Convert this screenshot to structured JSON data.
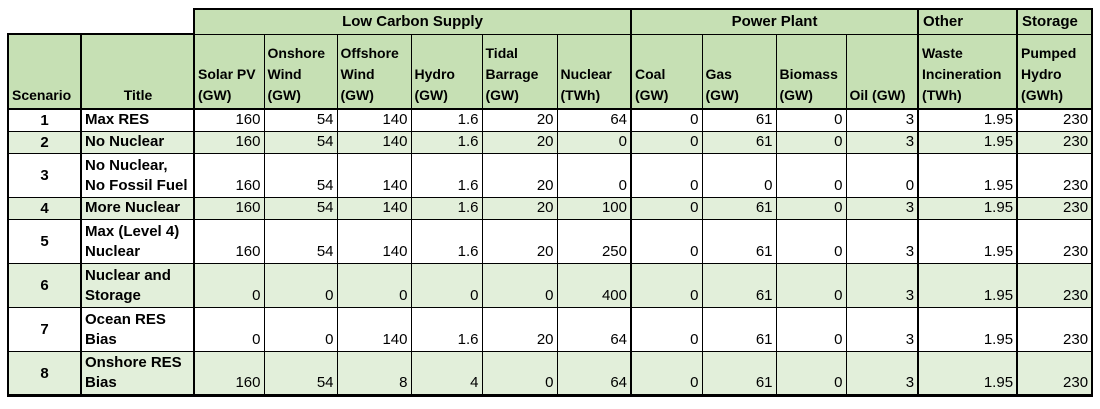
{
  "colors": {
    "header_fill": "#c6e0b4",
    "row_alt_fill": "#e2efda",
    "row_fill": "#ffffff",
    "border": "#000000"
  },
  "table": {
    "group_headers": [
      {
        "label": "Low Carbon Supply",
        "span": 6
      },
      {
        "label": "Power Plant",
        "span": 4
      },
      {
        "label": "Other",
        "span": 1
      },
      {
        "label": "Storage",
        "span": 1
      }
    ],
    "column_headers": [
      "Scenario",
      "Title",
      "Solar PV\n(GW)",
      "Onshore\nWind\n(GW)",
      "Offshore\nWind\n(GW)",
      "Hydro\n(GW)",
      "Tidal\nBarrage\n(GW)",
      "Nuclear\n(TWh)",
      "Coal\n(GW)",
      "Gas\n(GW)",
      "Biomass\n(GW)",
      "Oil (GW)",
      "Waste\nIncineration\n(TWh)",
      "Pumped\nHydro\n(GWh)"
    ],
    "rows": [
      {
        "scenario": "1",
        "title": "Max RES",
        "shaded": false,
        "values": [
          "160",
          "54",
          "140",
          "1.6",
          "20",
          "64",
          "0",
          "61",
          "0",
          "3",
          "1.95",
          "230"
        ]
      },
      {
        "scenario": "2",
        "title": "No Nuclear",
        "shaded": true,
        "values": [
          "160",
          "54",
          "140",
          "1.6",
          "20",
          "0",
          "0",
          "61",
          "0",
          "3",
          "1.95",
          "230"
        ]
      },
      {
        "scenario": "3",
        "title": "No Nuclear,\nNo Fossil Fuel",
        "shaded": false,
        "values": [
          "160",
          "54",
          "140",
          "1.6",
          "20",
          "0",
          "0",
          "0",
          "0",
          "0",
          "1.95",
          "230"
        ]
      },
      {
        "scenario": "4",
        "title": "More Nuclear",
        "shaded": true,
        "values": [
          "160",
          "54",
          "140",
          "1.6",
          "20",
          "100",
          "0",
          "61",
          "0",
          "3",
          "1.95",
          "230"
        ]
      },
      {
        "scenario": "5",
        "title": "Max (Level 4)\nNuclear",
        "shaded": false,
        "values": [
          "160",
          "54",
          "140",
          "1.6",
          "20",
          "250",
          "0",
          "61",
          "0",
          "3",
          "1.95",
          "230"
        ]
      },
      {
        "scenario": "6",
        "title": "Nuclear and\nStorage",
        "shaded": true,
        "values": [
          "0",
          "0",
          "0",
          "0",
          "0",
          "400",
          "0",
          "61",
          "0",
          "3",
          "1.95",
          "230"
        ]
      },
      {
        "scenario": "7",
        "title": "Ocean RES\nBias",
        "shaded": false,
        "values": [
          "0",
          "0",
          "140",
          "1.6",
          "20",
          "64",
          "0",
          "61",
          "0",
          "3",
          "1.95",
          "230"
        ]
      },
      {
        "scenario": "8",
        "title": "Onshore RES\nBias",
        "shaded": true,
        "values": [
          "160",
          "54",
          "8",
          "4",
          "0",
          "64",
          "0",
          "61",
          "0",
          "3",
          "1.95",
          "230"
        ]
      }
    ]
  }
}
